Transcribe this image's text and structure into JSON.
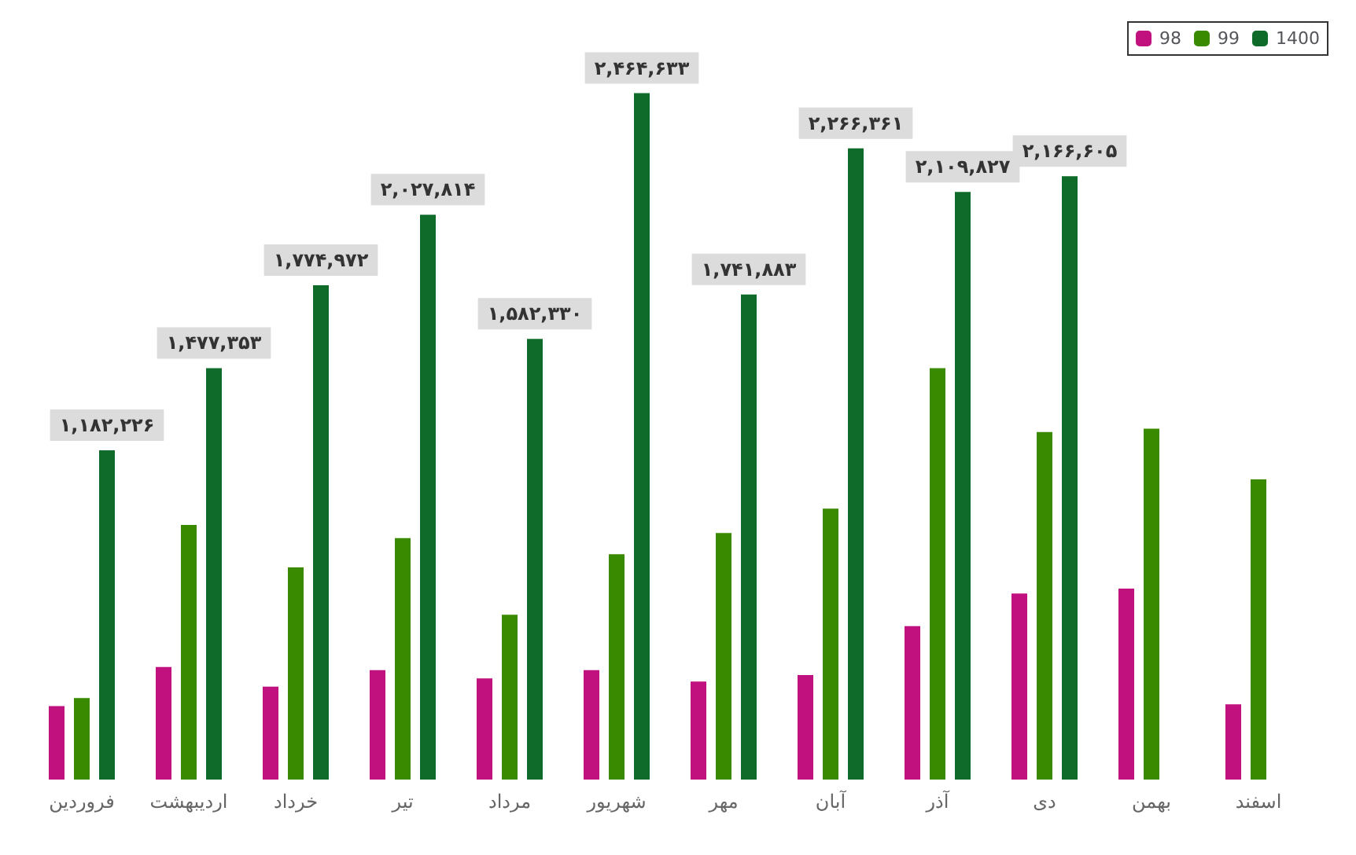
{
  "chart_data": {
    "type": "bar",
    "categories": [
      "فروردین",
      "اردیبهشت",
      "خرداد",
      "تیر",
      "مرداد",
      "شهریور",
      "مهر",
      "آبان",
      "آذر",
      "دی",
      "بهمن",
      "اسفند"
    ],
    "series": [
      {
        "name": "98",
        "color": "#c0117f",
        "values": [
          264000,
          404000,
          334000,
          393000,
          363000,
          393000,
          352000,
          375000,
          551000,
          668000,
          686000,
          270000
        ]
      },
      {
        "name": "99",
        "color": "#3a8a00",
        "values": [
          293000,
          914000,
          762000,
          867000,
          592000,
          809000,
          885000,
          973000,
          1477000,
          1248000,
          1260000,
          1078000
        ]
      },
      {
        "name": "1400",
        "color": "#0e6b2a",
        "values": [
          1182226,
          1477353,
          1774972,
          2027814,
          1582330,
          2464633,
          1741883,
          2266361,
          2109827,
          2166605,
          null,
          null
        ],
        "value_labels": [
          "۱,۱۸۲,۲۲۶",
          "۱,۴۷۷,۳۵۳",
          "۱,۷۷۴,۹۷۲",
          "۲,۰۲۷,۸۱۴",
          "۱,۵۸۲,۳۳۰",
          "۲,۴۶۴,۶۳۳",
          "۱,۷۴۱,۸۸۳",
          "۲,۲۶۶,۳۶۱",
          "۲,۱۰۹,۸۲۷",
          "۲,۱۶۶,۶۰۵",
          null,
          null
        ]
      }
    ],
    "grid": false,
    "legend": "top right"
  }
}
